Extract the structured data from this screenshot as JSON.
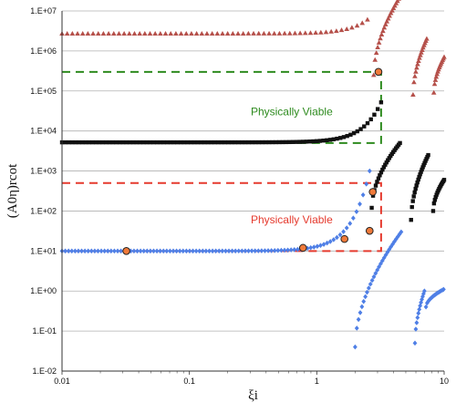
{
  "chart_data": {
    "type": "scatter",
    "xscale": "log",
    "yscale": "log",
    "xlim": [
      0.01,
      10
    ],
    "ylim": [
      0.01,
      10000000
    ],
    "xlabel": "ξi",
    "ylabel": "(A0η)rcot",
    "grid": "horizontal",
    "x_ticks": [
      "0.01",
      "0.1",
      "1",
      "10"
    ],
    "y_ticks": [
      "1.E-02",
      "1.E-01",
      "1.E+00",
      "1.E+01",
      "1.E+02",
      "1.E+03",
      "1.E+04",
      "1.E+05",
      "1.E+06",
      "1.E+07"
    ],
    "colors": {
      "red_series": "#b5504a",
      "black_series": "#111111",
      "blue_series": "#4f7fe6",
      "highlight_fill": "#f07a3a",
      "green": "#2e8b1f",
      "red": "#e53a2e",
      "grid": "#b0b0b0"
    },
    "series": [
      {
        "marker": "triangle",
        "color": "#b5504a",
        "branches": [
          {
            "x_range": [
              0.01,
              2.5
            ],
            "y_curve": "plateau",
            "y0": 2700000,
            "growth": 0.35,
            "points": 60
          },
          {
            "x_range": [
              2.8,
              4.4
            ],
            "y_curve": "rise",
            "y_start": 250000,
            "y_end": 20000000,
            "points": 20
          },
          {
            "x_range": [
              5.7,
              7.3
            ],
            "y_curve": "rise",
            "y_start": 80000,
            "y_end": 2000000,
            "points": 16
          },
          {
            "x_range": [
              8.3,
              10.0
            ],
            "y_curve": "rise",
            "y_start": 90000,
            "y_end": 700000,
            "points": 14
          }
        ]
      },
      {
        "marker": "square",
        "color": "#111111",
        "branches": [
          {
            "x_range": [
              0.01,
              3.2
            ],
            "y_curve": "plateau",
            "y0": 5200,
            "growth": 1.0,
            "points": 95
          },
          {
            "x_range": [
              2.7,
              4.5
            ],
            "y_curve": "rise",
            "y_start": 120,
            "y_end": 5000,
            "points": 22
          },
          {
            "x_range": [
              5.5,
              7.5
            ],
            "y_curve": "rise",
            "y_start": 60,
            "y_end": 2500,
            "points": 20
          },
          {
            "x_range": [
              8.2,
              10.0
            ],
            "y_curve": "rise",
            "y_start": 100,
            "y_end": 600,
            "points": 14
          }
        ]
      },
      {
        "marker": "diamond",
        "color": "#4f7fe6",
        "branches": [
          {
            "x_range": [
              0.01,
              2.6
            ],
            "y_curve": "plateau",
            "y0": 10,
            "growth": 2.0,
            "points": 95
          },
          {
            "x_range": [
              2.0,
              4.6
            ],
            "y_curve": "rise",
            "y_start": 0.04,
            "y_end": 30,
            "points": 28
          },
          {
            "x_range": [
              5.9,
              7.0
            ],
            "y_curve": "rise",
            "y_start": 0.05,
            "y_end": 1.0,
            "points": 12
          },
          {
            "x_range": [
              7.2,
              9.9
            ],
            "y_curve": "rise",
            "y_start": 0.4,
            "y_end": 1.1,
            "points": 16
          }
        ]
      }
    ],
    "highlighted_points": [
      {
        "x": 0.032,
        "y": 10
      },
      {
        "x": 0.78,
        "y": 12
      },
      {
        "x": 1.65,
        "y": 20
      },
      {
        "x": 2.6,
        "y": 32
      },
      {
        "x": 2.75,
        "y": 300
      },
      {
        "x": 3.05,
        "y": 300000
      }
    ],
    "annotations": [
      {
        "text": "Physically Viable",
        "color": "#2e8b1f",
        "x": 0.17,
        "y": 30000
      },
      {
        "text": "Physically Viable",
        "color": "#e53a2e",
        "x": 0.17,
        "y": 60
      }
    ],
    "regions": [
      {
        "color": "#2e8b1f",
        "x": [
          0.01,
          3.2
        ],
        "y": [
          5000,
          300000
        ]
      },
      {
        "color": "#e53a2e",
        "x": [
          0.01,
          3.2
        ],
        "y": [
          10,
          500
        ]
      }
    ]
  }
}
